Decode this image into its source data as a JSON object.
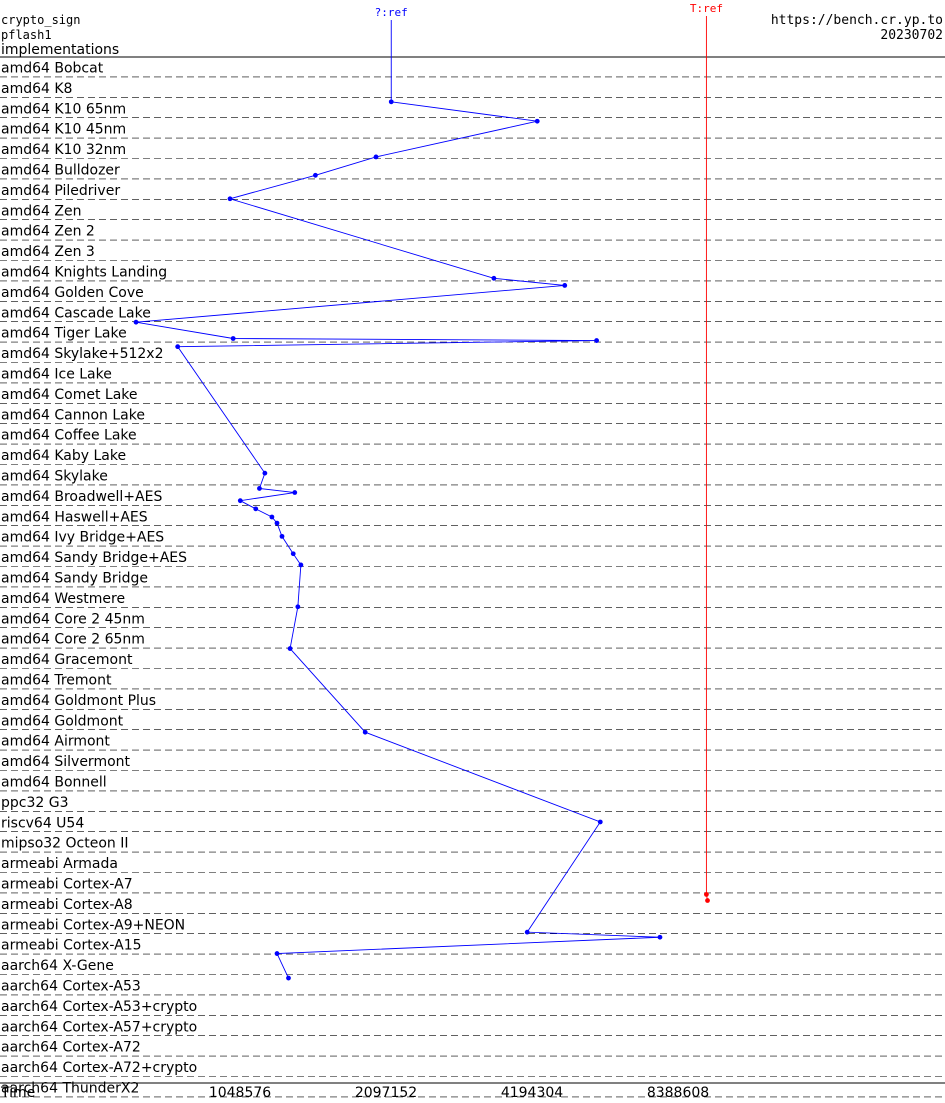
{
  "header": {
    "primitive": "crypto_sign",
    "system": "pflash1",
    "subtitle": "implementations",
    "site": "https://bench.cr.yp.to",
    "date": "20230702"
  },
  "colors": {
    "q_series": "#0000ff",
    "t_series": "#ff0000",
    "axis": "#000000",
    "dash": "#000000"
  },
  "chart_data": {
    "type": "line",
    "xlabel": "Time",
    "x_scale": "log2",
    "xlim": [
      524288,
      16777216
    ],
    "x_ticks": [
      1048576,
      2097152,
      4194304,
      8388608
    ],
    "categories": [
      "amd64 Bobcat",
      "amd64 K8",
      "amd64 K10 65nm",
      "amd64 K10 45nm",
      "amd64 K10 32nm",
      "amd64 Bulldozer",
      "amd64 Piledriver",
      "amd64 Zen",
      "amd64 Zen 2",
      "amd64 Zen 3",
      "amd64 Knights Landing",
      "amd64 Golden Cove",
      "amd64 Cascade Lake",
      "amd64 Tiger Lake",
      "amd64 Skylake+512x2",
      "amd64 Ice Lake",
      "amd64 Comet Lake",
      "amd64 Cannon Lake",
      "amd64 Coffee Lake",
      "amd64 Kaby Lake",
      "amd64 Skylake",
      "amd64 Broadwell+AES",
      "amd64 Haswell+AES",
      "amd64 Ivy Bridge+AES",
      "amd64 Sandy Bridge+AES",
      "amd64 Sandy Bridge",
      "amd64 Westmere",
      "amd64 Core 2 45nm",
      "amd64 Core 2 65nm",
      "amd64 Gracemont",
      "amd64 Tremont",
      "amd64 Goldmont Plus",
      "amd64 Goldmont",
      "amd64 Airmont",
      "amd64 Silvermont",
      "amd64 Bonnell",
      "ppc32 G3",
      "riscv64 U54",
      "mipso32 Octeon II",
      "armeabi Armada",
      "armeabi Cortex-A7",
      "armeabi Cortex-A8",
      "armeabi Cortex-A9+NEON",
      "armeabi Cortex-A15",
      "aarch64 X-Gene",
      "aarch64 Cortex-A53",
      "aarch64 Cortex-A53+crypto",
      "aarch64 Cortex-A57+crypto",
      "aarch64 Cortex-A72",
      "aarch64 Cortex-A72+crypto",
      "aarch64 ThunderX2"
    ],
    "series": [
      {
        "name": "?:ref",
        "points": [
          {
            "row": 2.15,
            "x": 2150000
          },
          {
            "row": 3.1,
            "x": 4300000
          },
          {
            "row": 4.85,
            "x": 2000000
          },
          {
            "row": 5.75,
            "x": 1500000
          },
          {
            "row": 6.9,
            "x": 1000000
          },
          {
            "row": 10.8,
            "x": 3500000
          },
          {
            "row": 11.15,
            "x": 4900000
          },
          {
            "row": 12.95,
            "x": 640000
          },
          {
            "row": 13.75,
            "x": 1015000
          },
          {
            "row": 13.85,
            "x": 5700000
          },
          {
            "row": 14.15,
            "x": 780000
          },
          {
            "row": 20.35,
            "x": 1180000
          },
          {
            "row": 21.1,
            "x": 1150000
          },
          {
            "row": 21.3,
            "x": 1360000
          },
          {
            "row": 21.7,
            "x": 1050000
          },
          {
            "row": 22.1,
            "x": 1130000
          },
          {
            "row": 22.5,
            "x": 1220000
          },
          {
            "row": 22.8,
            "x": 1250000
          },
          {
            "row": 23.45,
            "x": 1280000
          },
          {
            "row": 24.3,
            "x": 1350000
          },
          {
            "row": 24.85,
            "x": 1400000
          },
          {
            "row": 26.9,
            "x": 1380000
          },
          {
            "row": 28.95,
            "x": 1330000
          },
          {
            "row": 33.05,
            "x": 1900000
          },
          {
            "row": 37.45,
            "x": 5800000
          },
          {
            "row": 42.85,
            "x": 4100000
          },
          {
            "row": 43.1,
            "x": 7700000
          },
          {
            "row": 43.9,
            "x": 1250000
          },
          {
            "row": 45.1,
            "x": 1320000
          }
        ]
      },
      {
        "name": "T:ref",
        "points": [
          {
            "row": 41.0,
            "x": 9600000
          },
          {
            "row": 41.3,
            "x": 9650000
          }
        ]
      }
    ]
  }
}
